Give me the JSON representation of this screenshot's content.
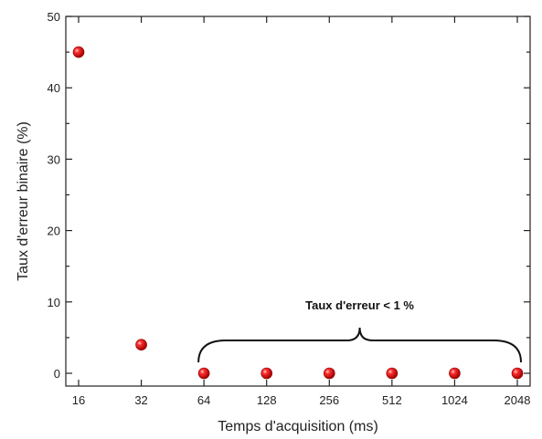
{
  "chart_data": {
    "type": "scatter",
    "title": "",
    "xlabel": "Temps d'acquisition (ms)",
    "ylabel": "Taux d'erreur binaire (%)",
    "x_scale": "log2",
    "xlim": [
      16,
      2048
    ],
    "ylim": [
      0,
      50
    ],
    "x_ticks": [
      "16",
      "32",
      "64",
      "128",
      "256",
      "512",
      "1024",
      "2048"
    ],
    "y_ticks": [
      "0",
      "10",
      "20",
      "30",
      "40",
      "50"
    ],
    "grid": false,
    "legend": "none",
    "series": [
      {
        "x": [
          16,
          32,
          64,
          128,
          256,
          512,
          1024,
          2048
        ],
        "y": [
          45,
          4,
          0,
          0,
          0,
          0,
          0,
          0
        ]
      }
    ],
    "marker_color": "#e01010",
    "annotation": {
      "text": "Taux d'erreur < 1 %",
      "x_range": [
        64,
        2048
      ]
    }
  }
}
